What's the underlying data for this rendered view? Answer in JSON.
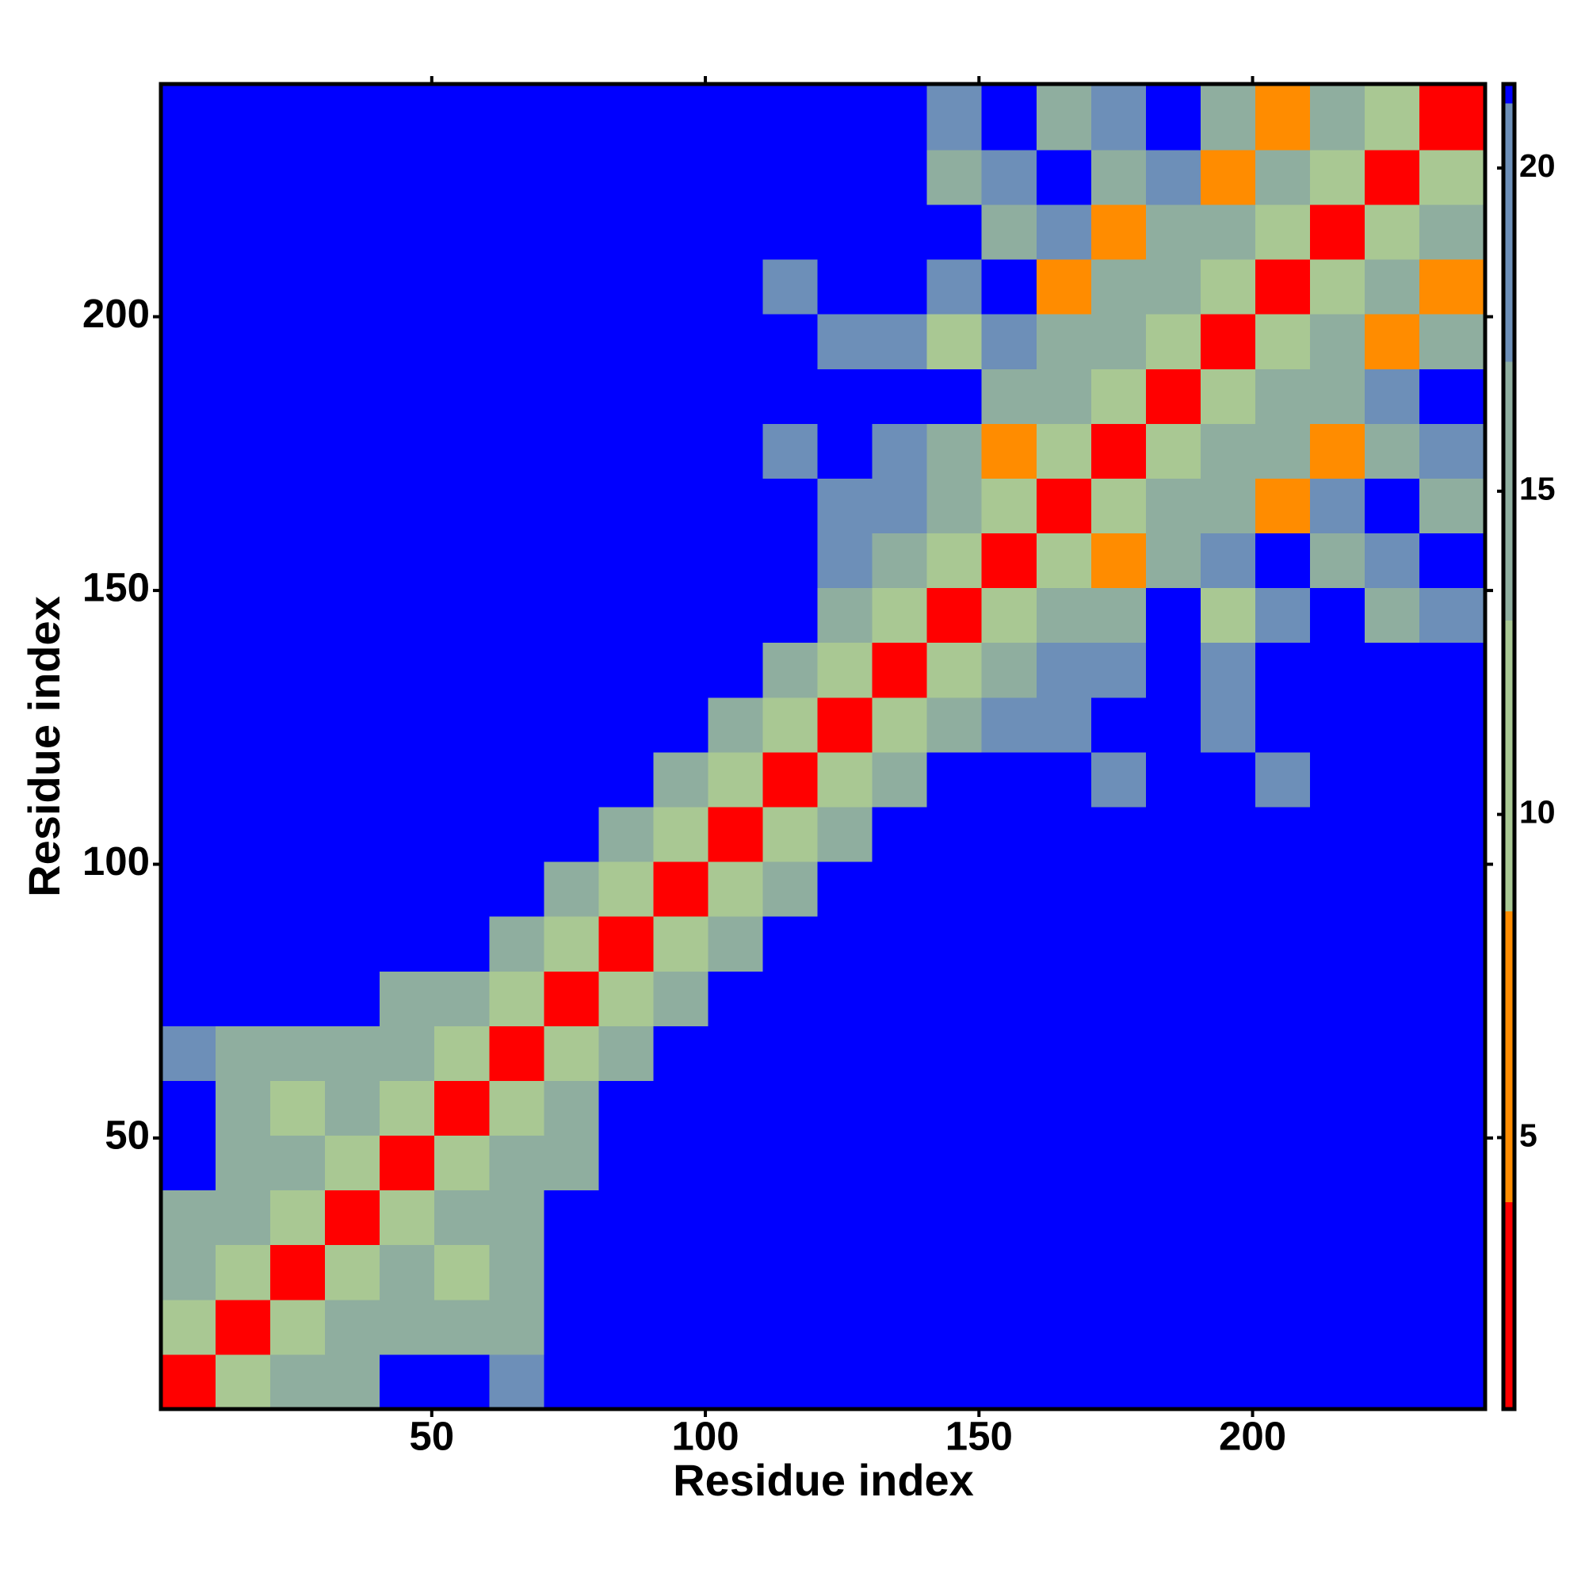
{
  "chart_data": {
    "type": "heatmap",
    "x_label": "Residue index",
    "y_label": "Residue index",
    "xlim": [
      0.5,
      242.5
    ],
    "ylim": [
      0.5,
      242.5
    ],
    "xticks": [
      50,
      100,
      150,
      200
    ],
    "yticks": [
      50,
      100,
      150,
      200
    ],
    "bins": [
      0.5,
      10.5,
      20.5,
      30.5,
      40.5,
      50.5,
      60.5,
      70.5,
      80.5,
      90.5,
      100.5,
      110.5,
      120.5,
      130.5,
      140.5,
      150.5,
      160.5,
      170.5,
      180.5,
      190.5,
      200.5,
      210.5,
      220.5,
      230.5,
      242.5
    ],
    "zlim": [
      0.8,
      21.3
    ],
    "zticks": [
      5,
      10,
      15,
      20
    ],
    "colorscale": [
      {
        "value": 0.8,
        "color": "#ff0000"
      },
      {
        "value": 4,
        "color": "#ff8c00"
      },
      {
        "value": 8.5,
        "color": "#a9c893"
      },
      {
        "value": 13,
        "color": "#8fae9f"
      },
      {
        "value": 17,
        "color": "#6d8fb8"
      },
      {
        "value": 21,
        "color": "#0000ff"
      }
    ],
    "z": [
      [
        3,
        9,
        13,
        15,
        21,
        21,
        17,
        21,
        21,
        21,
        21,
        21,
        21,
        21,
        21,
        21,
        21,
        21,
        21,
        21,
        21,
        21,
        21,
        21
      ],
      [
        9,
        3,
        9,
        13,
        15,
        14,
        14,
        21,
        21,
        21,
        21,
        21,
        21,
        21,
        21,
        21,
        21,
        21,
        21,
        21,
        21,
        21,
        21,
        21
      ],
      [
        13,
        9,
        3,
        9,
        13,
        12,
        14,
        21,
        21,
        21,
        21,
        21,
        21,
        21,
        21,
        21,
        21,
        21,
        21,
        21,
        21,
        21,
        21,
        21
      ],
      [
        15,
        13,
        9,
        3,
        9,
        13,
        15,
        21,
        21,
        21,
        21,
        21,
        21,
        21,
        21,
        21,
        21,
        21,
        21,
        21,
        21,
        21,
        21,
        21
      ],
      [
        21,
        15,
        13,
        9,
        3,
        9,
        13,
        15,
        21,
        21,
        21,
        21,
        21,
        21,
        21,
        21,
        21,
        21,
        21,
        21,
        21,
        21,
        21,
        21
      ],
      [
        21,
        14,
        12,
        13,
        9,
        3,
        9,
        13,
        21,
        21,
        21,
        21,
        21,
        21,
        21,
        21,
        21,
        21,
        21,
        21,
        21,
        21,
        21,
        21
      ],
      [
        17,
        14,
        14,
        15,
        13,
        9,
        3,
        9,
        16,
        21,
        21,
        21,
        21,
        21,
        21,
        21,
        21,
        21,
        21,
        21,
        21,
        21,
        21,
        21
      ],
      [
        21,
        21,
        21,
        21,
        15,
        13,
        9,
        3,
        9,
        16,
        21,
        21,
        21,
        21,
        21,
        21,
        21,
        21,
        21,
        21,
        21,
        21,
        21,
        21
      ],
      [
        21,
        21,
        21,
        21,
        21,
        21,
        16,
        9,
        3,
        9,
        16,
        21,
        21,
        21,
        21,
        21,
        21,
        21,
        21,
        21,
        21,
        21,
        21,
        21
      ],
      [
        21,
        21,
        21,
        21,
        21,
        21,
        21,
        16,
        9,
        3,
        9,
        16,
        21,
        21,
        21,
        21,
        21,
        21,
        21,
        21,
        21,
        21,
        21,
        21
      ],
      [
        21,
        21,
        21,
        21,
        21,
        21,
        21,
        21,
        16,
        9,
        3,
        9,
        16,
        21,
        21,
        21,
        21,
        21,
        21,
        21,
        21,
        21,
        21,
        21
      ],
      [
        21,
        21,
        21,
        21,
        21,
        21,
        21,
        21,
        21,
        16,
        9,
        3,
        9,
        16,
        21,
        21,
        21,
        18,
        21,
        21,
        18,
        21,
        21,
        21
      ],
      [
        21,
        21,
        21,
        21,
        21,
        21,
        21,
        21,
        21,
        21,
        16,
        9,
        3,
        9,
        16,
        18,
        18,
        21,
        21,
        18,
        21,
        21,
        21,
        21
      ],
      [
        21,
        21,
        21,
        21,
        21,
        21,
        21,
        21,
        21,
        21,
        21,
        16,
        9,
        3,
        9,
        16,
        18,
        18,
        21,
        18,
        21,
        21,
        21,
        21
      ],
      [
        21,
        21,
        21,
        21,
        21,
        21,
        21,
        21,
        21,
        21,
        21,
        21,
        16,
        9,
        3,
        9,
        13,
        15,
        21,
        10,
        19,
        21,
        16,
        19
      ],
      [
        21,
        21,
        21,
        21,
        21,
        21,
        21,
        21,
        21,
        21,
        21,
        21,
        18,
        16,
        9,
        3,
        9,
        8,
        15,
        19,
        21,
        16,
        19,
        21
      ],
      [
        21,
        21,
        21,
        21,
        21,
        21,
        21,
        21,
        21,
        21,
        21,
        21,
        18,
        18,
        13,
        9,
        3,
        9,
        13,
        15,
        8,
        19,
        21,
        16
      ],
      [
        21,
        21,
        21,
        21,
        21,
        21,
        21,
        21,
        21,
        21,
        21,
        18,
        21,
        18,
        15,
        8,
        9,
        3,
        9,
        13,
        15,
        7,
        16,
        19
      ],
      [
        21,
        21,
        21,
        21,
        21,
        21,
        21,
        21,
        21,
        21,
        21,
        21,
        21,
        21,
        21,
        15,
        13,
        9,
        3,
        9,
        13,
        15,
        17,
        21
      ],
      [
        21,
        21,
        21,
        21,
        21,
        21,
        21,
        21,
        21,
        21,
        21,
        21,
        18,
        18,
        10,
        19,
        15,
        13,
        9,
        3,
        9,
        13,
        7,
        16
      ],
      [
        21,
        21,
        21,
        21,
        21,
        21,
        21,
        21,
        21,
        21,
        21,
        18,
        21,
        21,
        19,
        21,
        8,
        15,
        13,
        9,
        3,
        9,
        13,
        8
      ],
      [
        21,
        21,
        21,
        21,
        21,
        21,
        21,
        21,
        21,
        21,
        21,
        21,
        21,
        21,
        21,
        16,
        19,
        7,
        15,
        13,
        9,
        3,
        9,
        13
      ],
      [
        21,
        21,
        21,
        21,
        21,
        21,
        21,
        21,
        21,
        21,
        21,
        21,
        21,
        21,
        16,
        19,
        21,
        16,
        17,
        7,
        13,
        9,
        3,
        9
      ],
      [
        21,
        21,
        21,
        21,
        21,
        21,
        21,
        21,
        21,
        21,
        21,
        21,
        21,
        21,
        19,
        21,
        16,
        19,
        21,
        16,
        8,
        13,
        9,
        3
      ]
    ]
  }
}
